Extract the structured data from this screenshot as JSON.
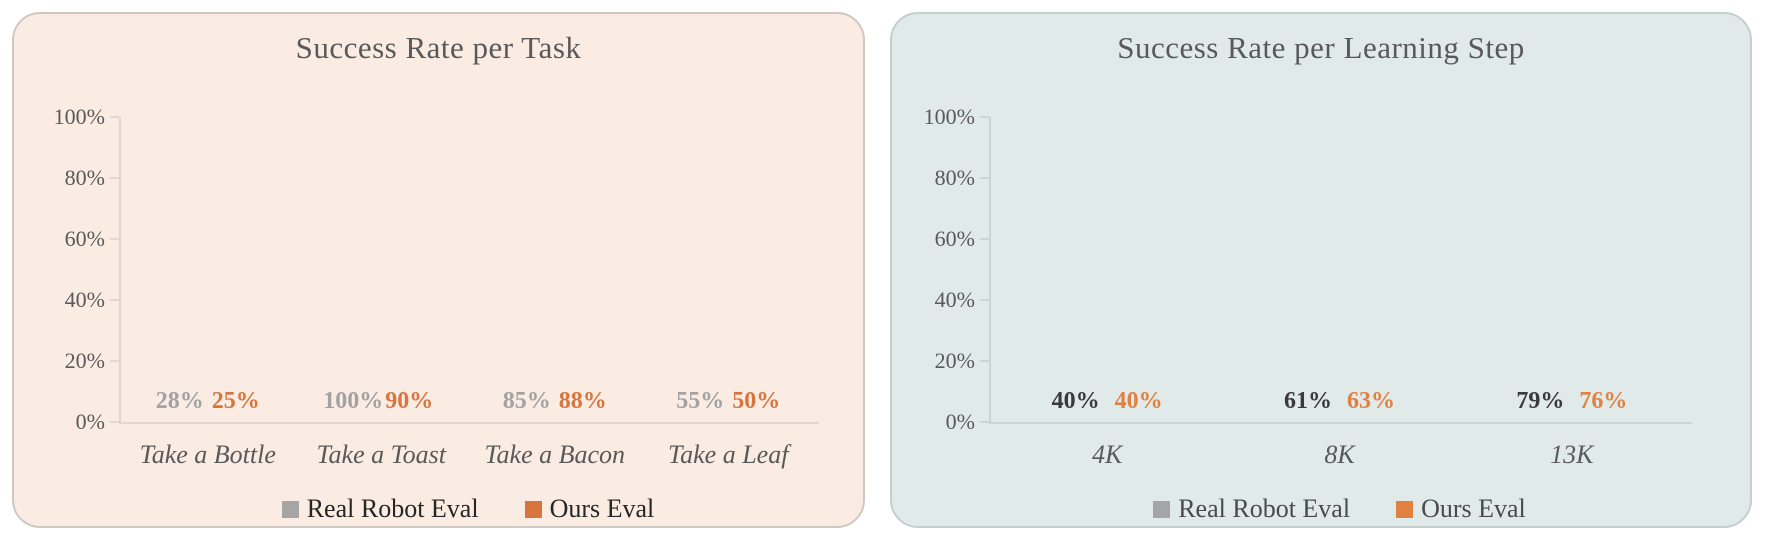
{
  "page": {
    "background": "#FFFFFF"
  },
  "chart_data": [
    {
      "type": "bar",
      "title": "Success Rate per Task",
      "categories": [
        "Take a Bottle",
        "Take a Toast",
        "Take a Bacon",
        "Take a Leaf"
      ],
      "series": [
        {
          "name": "Real Robot Eval",
          "values": [
            28,
            100,
            85,
            55
          ],
          "labels": [
            "28%",
            "100%",
            "85%",
            "55%"
          ],
          "bar_color": "#A5A5A5",
          "label_color": "#A2A2A2"
        },
        {
          "name": "Ours Eval",
          "values": [
            25,
            90,
            88,
            50
          ],
          "labels": [
            "25%",
            "90%",
            "88%",
            "50%"
          ],
          "bar_color": "#D8753E",
          "label_color": "#D8753E"
        }
      ],
      "xlabel": "",
      "ylabel": "",
      "ylim": [
        0,
        100
      ],
      "yticks": [
        {
          "value": 0,
          "label": "0%"
        },
        {
          "value": 20,
          "label": "20%"
        },
        {
          "value": 40,
          "label": "40%"
        },
        {
          "value": 60,
          "label": "60%"
        },
        {
          "value": 80,
          "label": "80%"
        },
        {
          "value": 100,
          "label": "100%"
        }
      ],
      "grid": false,
      "legend_position": "bottom",
      "panel_bg": "#FAECE2",
      "panel_border": "#CFC8C2",
      "axis_color": "#DFD7D0",
      "text_color": "#595959",
      "legend_text_color": "#262626"
    },
    {
      "type": "bar",
      "title": "Success Rate per Learning Step",
      "categories": [
        "4K",
        "8K",
        "13K"
      ],
      "series": [
        {
          "name": "Real Robot Eval",
          "values": [
            40,
            61,
            79
          ],
          "labels": [
            "40%",
            "61%",
            "79%"
          ],
          "bar_color": "#A5A5A5",
          "label_color": "#3A3A3A"
        },
        {
          "name": "Ours Eval",
          "values": [
            40,
            63,
            76
          ],
          "labels": [
            "40%",
            "63%",
            "76%"
          ],
          "bar_color": "#E08142",
          "label_color": "#E08142"
        }
      ],
      "xlabel": "",
      "ylabel": "",
      "ylim": [
        0,
        100
      ],
      "yticks": [
        {
          "value": 0,
          "label": "0%"
        },
        {
          "value": 20,
          "label": "20%"
        },
        {
          "value": 40,
          "label": "40%"
        },
        {
          "value": 60,
          "label": "60%"
        },
        {
          "value": 80,
          "label": "80%"
        },
        {
          "value": 100,
          "label": "100%"
        }
      ],
      "grid": false,
      "legend_position": "bottom",
      "panel_bg": "#E0EAE8",
      "panel_border": "#C5CFCD",
      "axis_color": "#CBD5D3",
      "text_color": "#595959",
      "legend_text_color": "#4A4A4A"
    }
  ]
}
